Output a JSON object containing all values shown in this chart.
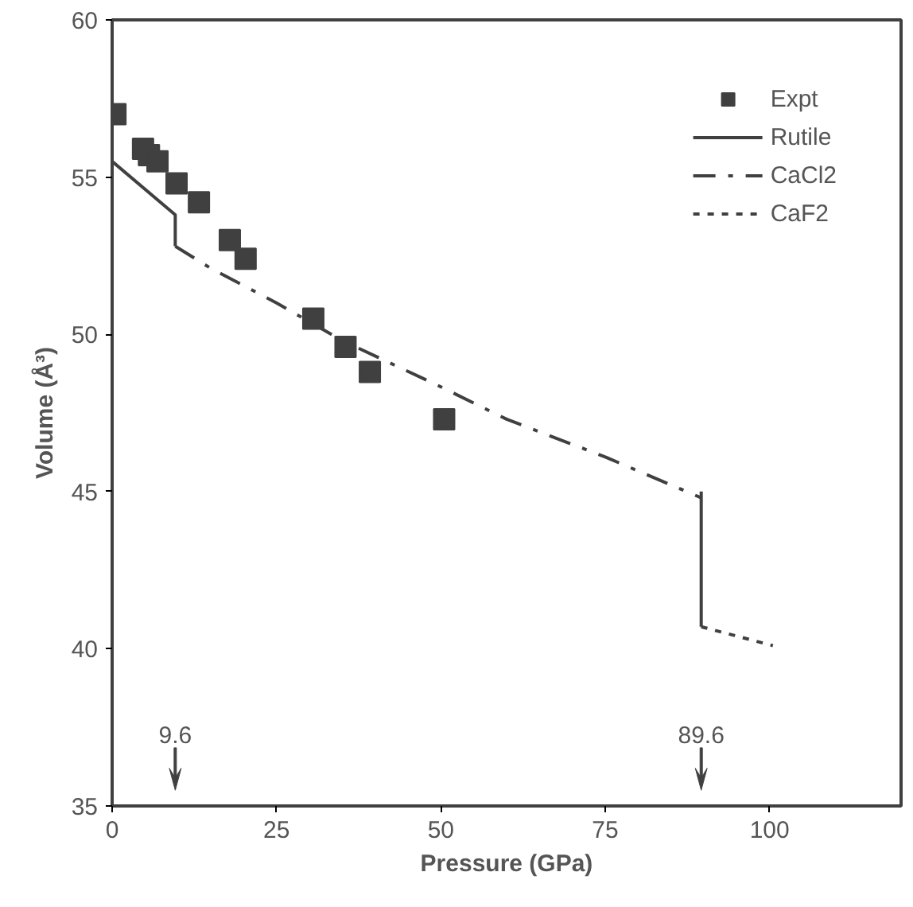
{
  "chart_data": {
    "type": "line",
    "xlabel": "Pressure (GPa)",
    "ylabel": "Volume (Å³)",
    "xlim": [
      0,
      120
    ],
    "ylim": [
      35,
      60
    ],
    "xticks": [
      0,
      25,
      50,
      75,
      100
    ],
    "yticks": [
      35,
      40,
      45,
      50,
      55,
      60
    ],
    "grid": false,
    "legend": "top right",
    "series": [
      {
        "name": "Expt",
        "type": "scatter",
        "marker": "square",
        "color": "#404040",
        "x": [
          0.5,
          4.7,
          5.6,
          6.9,
          9.8,
          13.2,
          17.9,
          20.3,
          30.6,
          35.5,
          39.2,
          50.5
        ],
        "values": [
          57.0,
          55.9,
          55.7,
          55.5,
          54.8,
          54.2,
          53.0,
          52.4,
          50.5,
          49.6,
          48.8,
          47.3
        ]
      },
      {
        "name": "Rutile",
        "line_style": "solid",
        "color": "#404040",
        "x": [
          0,
          9.6,
          9.6,
          50,
          89.6,
          89.6
        ],
        "values": [
          55.5,
          53.8,
          52.8,
          null,
          45.0,
          40.7
        ]
      },
      {
        "name": "CaCl2",
        "line_style": "dashed",
        "color": "#404040",
        "x": [
          9.6,
          15,
          25,
          35,
          49.3,
          60,
          75,
          89.6
        ],
        "values": [
          52.8,
          52.1,
          51.0,
          49.8,
          48.4,
          47.3,
          46.1,
          44.8
        ]
      },
      {
        "name": "CaF2",
        "line_style": "dotted",
        "color": "#404040",
        "x": [
          89.6,
          100.5
        ],
        "values": [
          40.7,
          40.1
        ]
      }
    ],
    "ref_lines": [
      {
        "axis": "x",
        "value": 9.6,
        "label": "9.6"
      },
      {
        "axis": "x",
        "value": 89.6,
        "label": "89.6"
      }
    ]
  }
}
